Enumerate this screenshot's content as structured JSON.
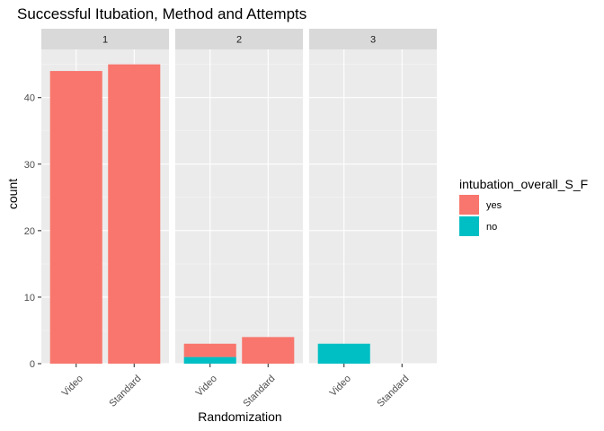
{
  "chart_data": {
    "type": "bar",
    "stacked": true,
    "title": "Successful Itubation, Method and Attempts",
    "xlabel": "Randomization",
    "ylabel": "count",
    "categories": [
      "Video",
      "Standard"
    ],
    "facets": [
      "1",
      "2",
      "3"
    ],
    "y_ticks": [
      0,
      10,
      20,
      30,
      40
    ],
    "ylim": [
      0,
      47.25
    ],
    "grid": true,
    "legend": {
      "title": "intubation_overall_S_F",
      "placement": "right",
      "entries": [
        {
          "label": "yes",
          "color": "#F8766D"
        },
        {
          "label": "no",
          "color": "#00BFC4"
        }
      ]
    },
    "series": [
      {
        "name": "yes",
        "color": "#F8766D",
        "values": [
          [
            44,
            45
          ],
          [
            2,
            4
          ],
          [
            0,
            0
          ]
        ]
      },
      {
        "name": "no",
        "color": "#00BFC4",
        "values": [
          [
            0,
            0
          ],
          [
            1,
            0
          ],
          [
            3,
            0
          ]
        ]
      }
    ]
  }
}
